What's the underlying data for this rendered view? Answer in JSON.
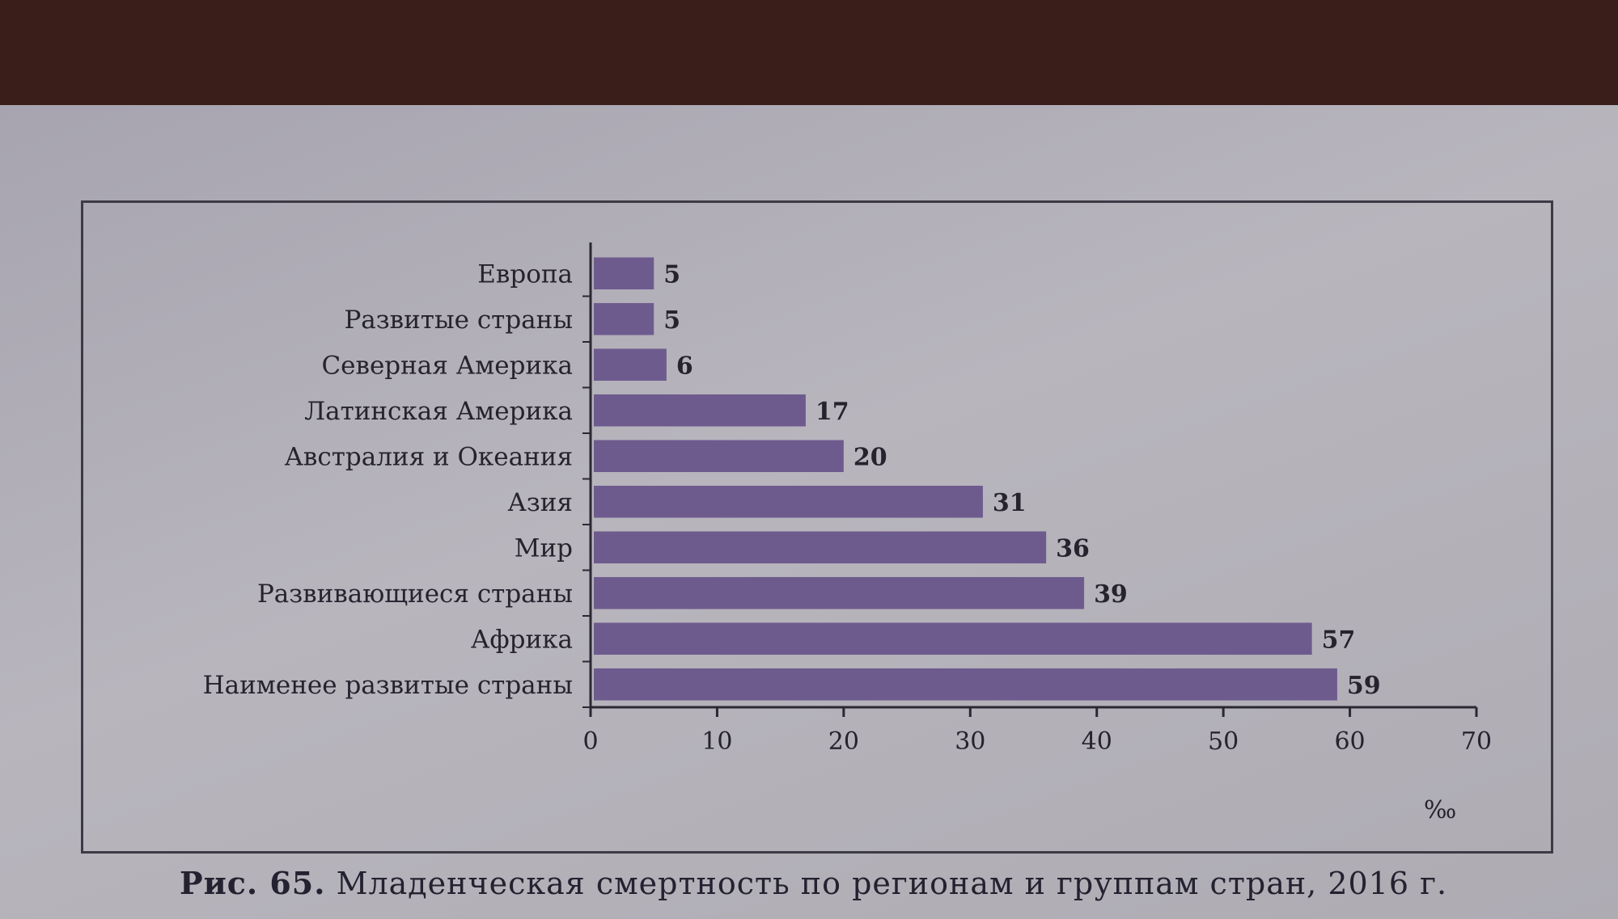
{
  "caption": {
    "figure": "Рис. 65.",
    "text": "Младенческая смертность по регионам и группам стран, 2016 г."
  },
  "chart_data": {
    "type": "bar",
    "orientation": "horizontal",
    "categories": [
      "Европа",
      "Развитые страны",
      "Северная Америка",
      "Латинская Америка",
      "Австралия и Океания",
      "Азия",
      "Мир",
      "Развивающиеся страны",
      "Африка",
      "Наименее развитые страны"
    ],
    "values": [
      5,
      5,
      6,
      17,
      20,
      31,
      36,
      39,
      57,
      59
    ],
    "value_labels": [
      "5",
      "5",
      "6",
      "17",
      "20",
      "31",
      "36",
      "39",
      "57",
      "59"
    ],
    "xlim": [
      0,
      70
    ],
    "xticks": [
      "0",
      "10",
      "20",
      "30",
      "40",
      "50",
      "60",
      "70"
    ],
    "xunit": "‰",
    "bar_color": "#6e5b8e",
    "grid": false
  }
}
